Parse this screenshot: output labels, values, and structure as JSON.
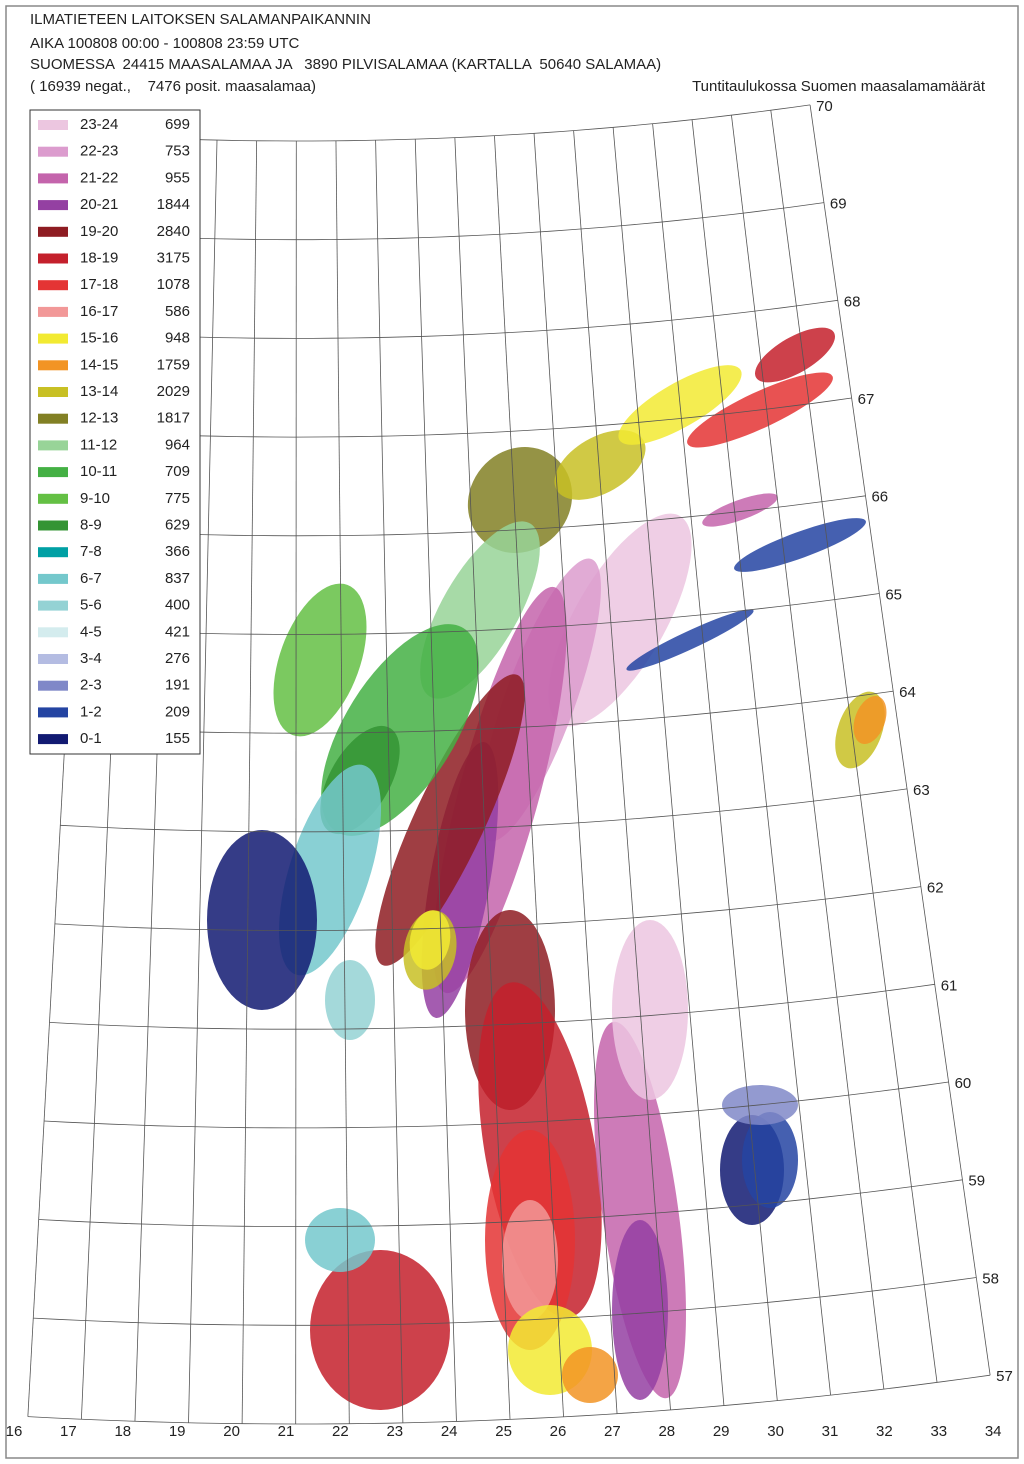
{
  "header": {
    "line1": "ILMATIETEEN LAITOKSEN SALAMANPAIKANNIN",
    "line2": "AIKA 100808 00:00 - 100808 23:59 UTC",
    "line3": "SUOMESSA  24415 MAASALAMAA JA   3890 PILVISALAMAA (KARTALLA  50640 SALAMAA)",
    "line4": "( 16939 negat.,    7476 posit. maasalamaa)",
    "note": "Tuntitaulukossa Suomen maasalamamäärät"
  },
  "legend": {
    "items": [
      {
        "hours": "23-24",
        "count": 699,
        "color": "#ecc6e0"
      },
      {
        "hours": "22-23",
        "count": 753,
        "color": "#dc9cce"
      },
      {
        "hours": "21-22",
        "count": 955,
        "color": "#c464ac"
      },
      {
        "hours": "20-21",
        "count": 1844,
        "color": "#9440a2"
      },
      {
        "hours": "19-20",
        "count": 2840,
        "color": "#8e1c22"
      },
      {
        "hours": "18-19",
        "count": 3175,
        "color": "#c4202c"
      },
      {
        "hours": "17-18",
        "count": 1078,
        "color": "#e43434"
      },
      {
        "hours": "16-17",
        "count": 586,
        "color": "#f29898"
      },
      {
        "hours": "15-16",
        "count": 948,
        "color": "#f2ea32"
      },
      {
        "hours": "14-15",
        "count": 1759,
        "color": "#f29424"
      },
      {
        "hours": "13-14",
        "count": 2029,
        "color": "#c8c024"
      },
      {
        "hours": "12-13",
        "count": 1817,
        "color": "#828024"
      },
      {
        "hours": "11-12",
        "count": 964,
        "color": "#98d498"
      },
      {
        "hours": "10-11",
        "count": 709,
        "color": "#44b044"
      },
      {
        "hours": "9-10",
        "count": 775,
        "color": "#64c044"
      },
      {
        "hours": "8-9",
        "count": 629,
        "color": "#349434"
      },
      {
        "hours": "7-8",
        "count": 366,
        "color": "#00a0a4"
      },
      {
        "hours": "6-7",
        "count": 837,
        "color": "#74c8cc"
      },
      {
        "hours": "5-6",
        "count": 400,
        "color": "#94d2d4"
      },
      {
        "hours": "4-5",
        "count": 421,
        "color": "#d4ecee"
      },
      {
        "hours": "3-4",
        "count": 276,
        "color": "#b4bce2"
      },
      {
        "hours": "2-3",
        "count": 191,
        "color": "#8088c8"
      },
      {
        "hours": "1-2",
        "count": 209,
        "color": "#2444a2"
      },
      {
        "hours": "0-1",
        "count": 155,
        "color": "#121a72"
      }
    ]
  },
  "map": {
    "latitude_labels": [
      70,
      69,
      68,
      67,
      66,
      65,
      64,
      63,
      62,
      61,
      60,
      59,
      58,
      57
    ],
    "longitude_labels": [
      16,
      17,
      18,
      19,
      20,
      21,
      22,
      23,
      24,
      25,
      26,
      27,
      28,
      29,
      30,
      31,
      32,
      33,
      34
    ]
  }
}
